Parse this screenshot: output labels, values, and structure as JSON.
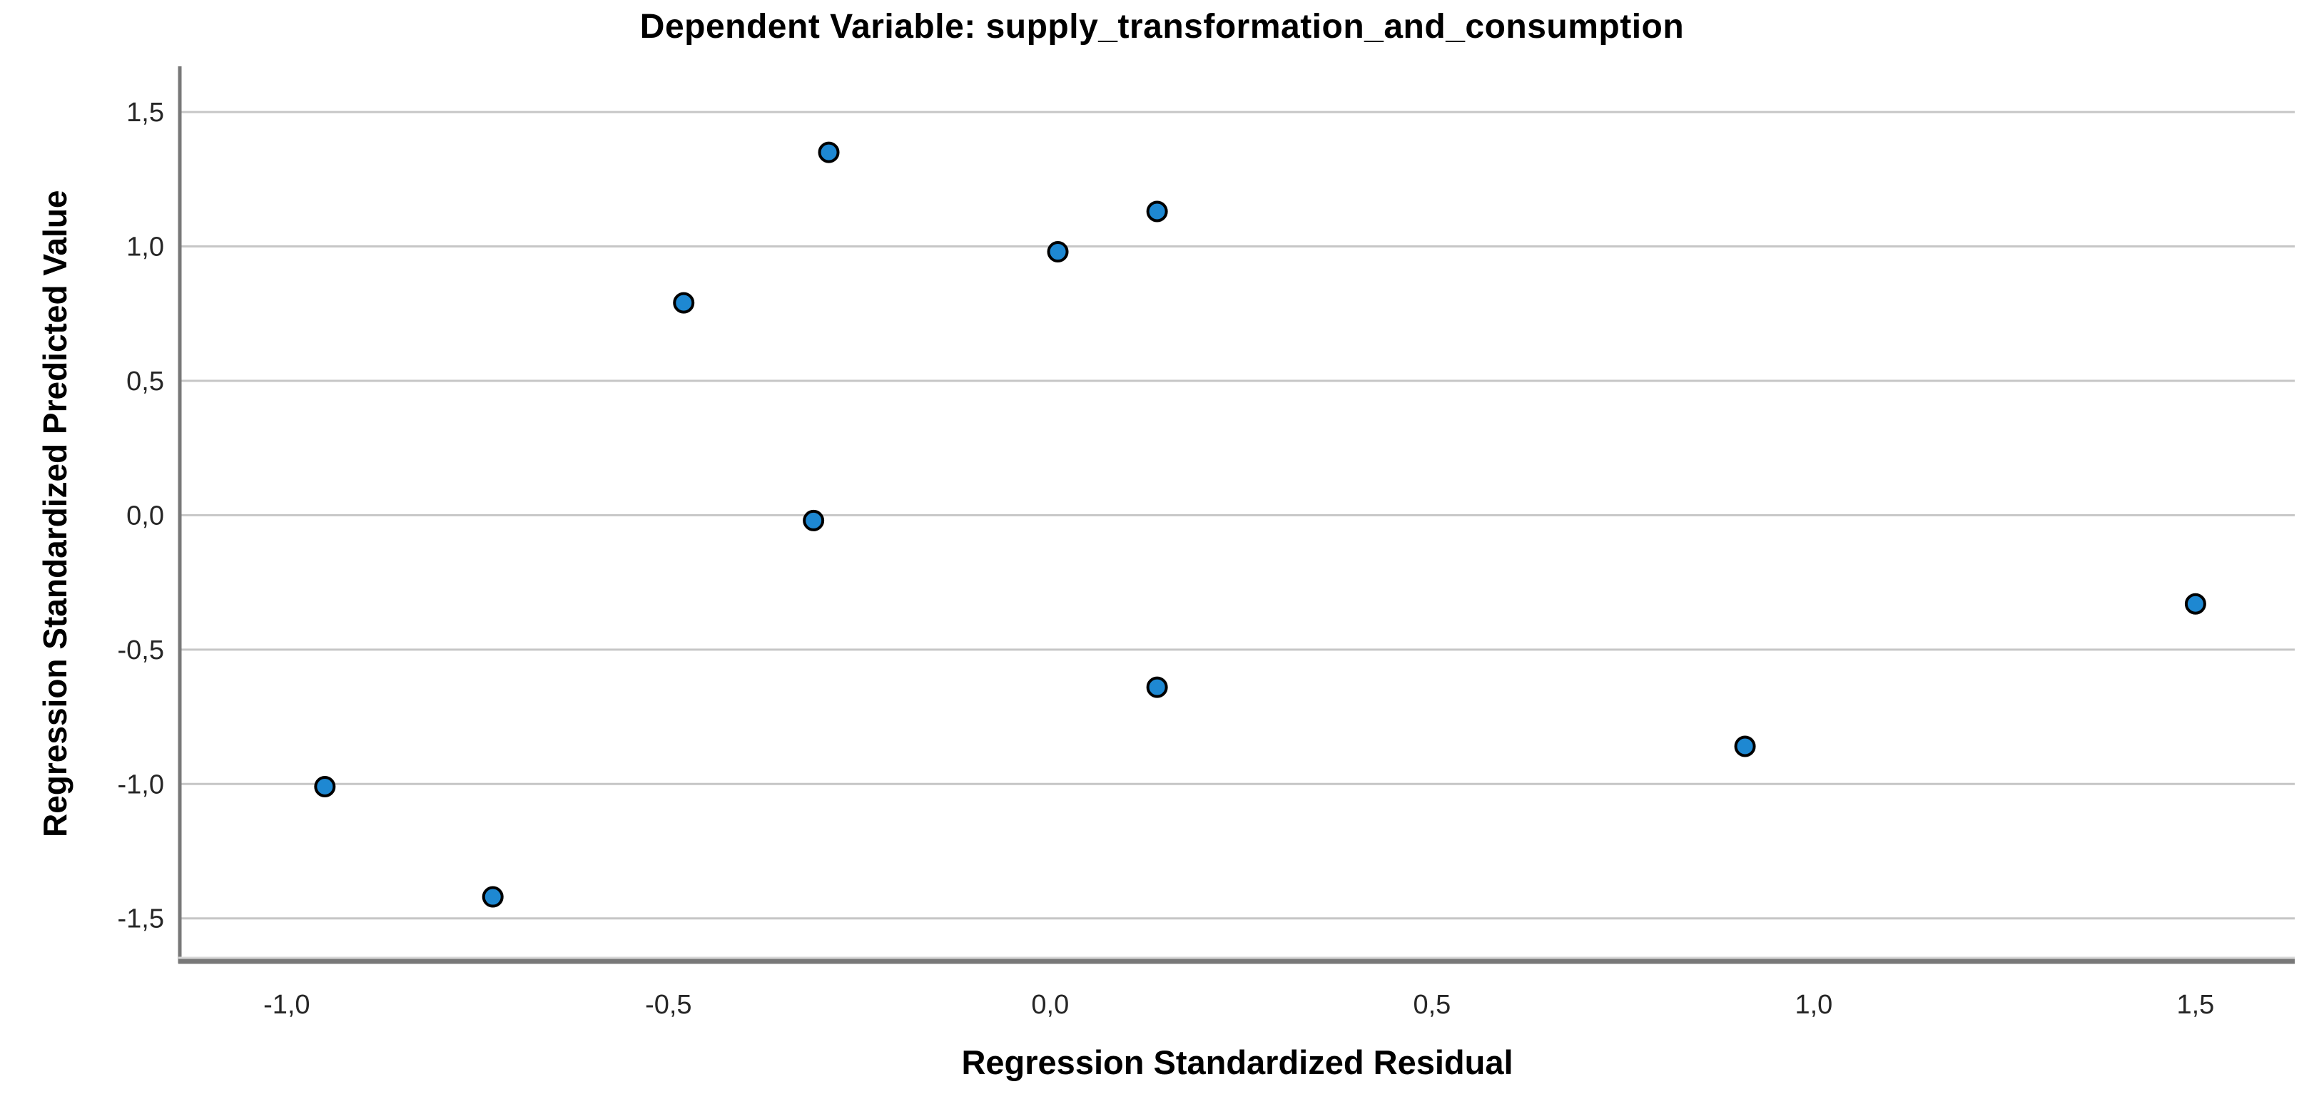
{
  "chart_data": {
    "type": "scatter",
    "title": "Dependent Variable: supply_transformation_and_consumption",
    "xlabel": "Regression Standardized Residual",
    "ylabel": "Regression Standardized Predicted Value",
    "points": [
      {
        "x": -0.29,
        "y": 1.35
      },
      {
        "x": 0.14,
        "y": 1.13
      },
      {
        "x": 0.01,
        "y": 0.98
      },
      {
        "x": -0.48,
        "y": 0.79
      },
      {
        "x": -0.31,
        "y": -0.02
      },
      {
        "x": 1.5,
        "y": -0.33
      },
      {
        "x": 0.14,
        "y": -0.64
      },
      {
        "x": 0.91,
        "y": -0.86
      },
      {
        "x": -0.95,
        "y": -1.01
      },
      {
        "x": -0.73,
        "y": -1.42
      }
    ],
    "x_ticks": {
      "values": [
        -1.0,
        -0.5,
        0.0,
        0.5,
        1.0,
        1.5
      ],
      "labels": [
        "-1,0",
        "-0,5",
        "0,0",
        "0,5",
        "1,0",
        "1,5"
      ]
    },
    "y_ticks": {
      "values": [
        1.5,
        1.0,
        0.5,
        0.0,
        -0.5,
        -1.0,
        -1.5
      ],
      "labels": [
        "1,5",
        "1,0",
        "0,5",
        "0,0",
        "-0,5",
        "-1,0",
        "-1,5"
      ]
    },
    "xlim": [
      -1.14,
      1.63
    ],
    "ylim": [
      -1.66,
      1.67
    ],
    "grid": "horizontal-only",
    "legend": "none",
    "colors": {
      "marker_fill": "#1e88d2",
      "marker_edge": "#000000",
      "gridline": "#c6c6c6",
      "axis_line": "#787878",
      "axis_line_light": "#d8d8d8",
      "tick_text": "#262626",
      "title_text": "#000000"
    }
  }
}
